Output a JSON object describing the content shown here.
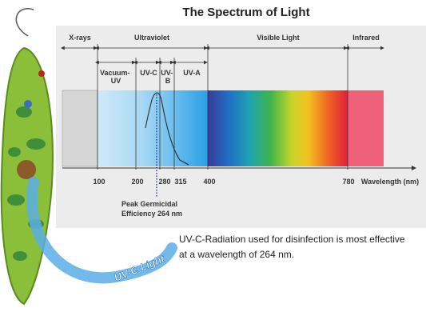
{
  "title": "The Spectrum of Light",
  "bands": [
    "X-rays",
    "Ultraviolet",
    "Visible Light",
    "Infrared"
  ],
  "sub_bands": [
    [
      "Vacuum-",
      "UV"
    ],
    [
      "UV-C"
    ],
    [
      "UV-",
      "B"
    ],
    [
      "UV-A"
    ]
  ],
  "wavelength_ticks": [
    100,
    200,
    280,
    315,
    400,
    780
  ],
  "axis_label": "Wavelength (nm)",
  "annotation": [
    "Peak Germicidal",
    "Efficiency 264 nm"
  ],
  "caption": [
    "UV-C-Radiation used for disinfection is most effective",
    "at a wavelength of 264 nm."
  ],
  "light_label": "UV-C Light"
}
